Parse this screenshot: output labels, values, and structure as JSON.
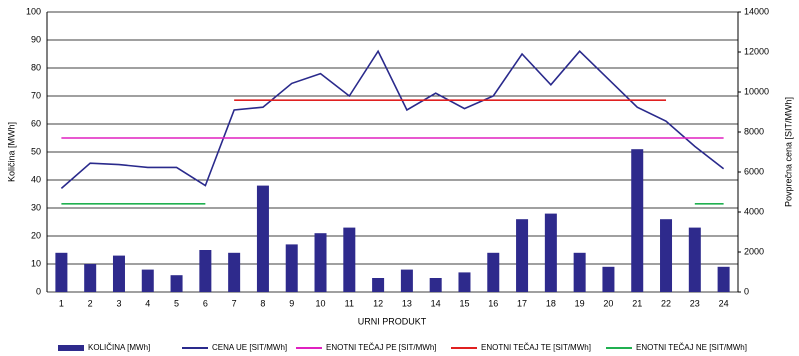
{
  "chart_data": {
    "type": "bar",
    "x_label": "URNI PRODUKT",
    "y_label": "Količina [MWh]",
    "y2_label": "Povprečna cena [SIT/MWh]",
    "categories": [
      "1",
      "2",
      "3",
      "4",
      "5",
      "6",
      "7",
      "8",
      "9",
      "10",
      "11",
      "12",
      "13",
      "14",
      "15",
      "16",
      "17",
      "18",
      "19",
      "20",
      "21",
      "22",
      "23",
      "24"
    ],
    "ylim": [
      0,
      100
    ],
    "yticks": [
      0,
      10,
      20,
      30,
      40,
      50,
      60,
      70,
      80,
      90,
      100
    ],
    "y2lim": [
      0,
      14000
    ],
    "y2ticks": [
      0,
      2000,
      4000,
      6000,
      8000,
      10000,
      12000,
      14000
    ],
    "grid": true,
    "series": [
      {
        "name": "KOLIČINA [MWh]",
        "type": "bar",
        "color": "#2e2a8c",
        "values": [
          14,
          10,
          13,
          8,
          6,
          15,
          14,
          38,
          17,
          21,
          23,
          5,
          8,
          5,
          7,
          14,
          26,
          28,
          14,
          9,
          51,
          26,
          23,
          9
        ]
      },
      {
        "name": "CENA UE [SIT/MWh]",
        "type": "line",
        "axis": "y2",
        "color": "#2a2a8c",
        "values": [
          5180,
          6440,
          6370,
          6230,
          6230,
          5320,
          9100,
          9240,
          10430,
          10920,
          9800,
          12040,
          9100,
          9940,
          9170,
          9800,
          11900,
          10360,
          12040,
          10640,
          9240,
          8540,
          7280,
          6160
        ]
      },
      {
        "name": "ENOTNI TEČAJ PE [SIT/MWh]",
        "type": "line",
        "axis": "y2",
        "color": "#e020c0",
        "values": [
          7700,
          7700,
          7700,
          7700,
          7700,
          7700,
          7700,
          7700,
          7700,
          7700,
          7700,
          7700,
          7700,
          7700,
          7700,
          7700,
          7700,
          7700,
          7700,
          7700,
          7700,
          7700,
          7700,
          7700
        ]
      },
      {
        "name": "ENOTNI TEČAJ TE [SIT/MWh]",
        "type": "line",
        "axis": "y2",
        "color": "#e02020",
        "values": [
          null,
          null,
          null,
          null,
          null,
          null,
          9590,
          9590,
          9590,
          9590,
          9590,
          9590,
          9590,
          9590,
          9590,
          9590,
          9590,
          9590,
          9590,
          9590,
          9590,
          9590,
          null,
          null
        ]
      },
      {
        "name": "ENOTNI TEČAJ NE [SIT/MWh]",
        "type": "line",
        "axis": "y2",
        "color": "#20b050",
        "values": [
          4410,
          4410,
          4410,
          4410,
          4410,
          4410,
          null,
          null,
          null,
          null,
          null,
          null,
          null,
          null,
          null,
          null,
          null,
          null,
          null,
          null,
          null,
          null,
          4410,
          4410
        ]
      }
    ]
  }
}
